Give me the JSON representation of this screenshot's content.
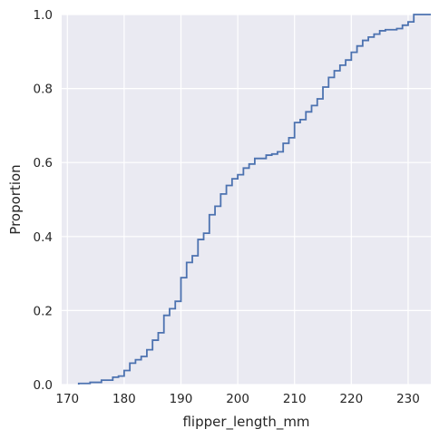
{
  "chart_data": {
    "type": "line",
    "subtype": "ecdf-step",
    "title": "",
    "xlabel": "flipper_length_mm",
    "ylabel": "Proportion",
    "xlim": [
      169,
      234
    ],
    "ylim": [
      0,
      1
    ],
    "xticks": [
      170,
      180,
      190,
      200,
      210,
      220,
      230
    ],
    "xtick_labels": [
      "170",
      "180",
      "190",
      "200",
      "210",
      "220",
      "230"
    ],
    "yticks": [
      0,
      0.2,
      0.4,
      0.6,
      0.8,
      1.0
    ],
    "ytick_labels": [
      "0.0",
      "0.2",
      "0.4",
      "0.6",
      "0.8",
      "1.0"
    ],
    "grid": true,
    "colors": {
      "background": "#eaeaf2",
      "grid": "#ffffff",
      "line": "#4c72b0"
    },
    "series": [
      {
        "x": [
          172,
          174,
          176,
          178,
          179,
          180,
          181,
          182,
          183,
          184,
          185,
          186,
          187,
          188,
          189,
          190,
          191,
          192,
          193,
          194,
          195,
          196,
          197,
          198,
          199,
          200,
          201,
          202,
          203,
          204,
          205,
          206,
          207,
          208,
          209,
          210,
          211,
          212,
          213,
          214,
          215,
          216,
          217,
          218,
          219,
          220,
          221,
          222,
          223,
          224,
          225,
          226,
          228,
          229,
          230,
          231
        ],
        "y": [
          0.003,
          0.006,
          0.012,
          0.02,
          0.023,
          0.038,
          0.058,
          0.067,
          0.076,
          0.094,
          0.12,
          0.14,
          0.187,
          0.205,
          0.225,
          0.289,
          0.33,
          0.348,
          0.392,
          0.409,
          0.459,
          0.482,
          0.515,
          0.538,
          0.556,
          0.567,
          0.585,
          0.596,
          0.611,
          0.611,
          0.62,
          0.623,
          0.629,
          0.652,
          0.667,
          0.708,
          0.716,
          0.737,
          0.754,
          0.772,
          0.804,
          0.83,
          0.848,
          0.863,
          0.877,
          0.898,
          0.915,
          0.93,
          0.939,
          0.947,
          0.956,
          0.959,
          0.962,
          0.971,
          0.98,
          1.0
        ]
      }
    ]
  }
}
